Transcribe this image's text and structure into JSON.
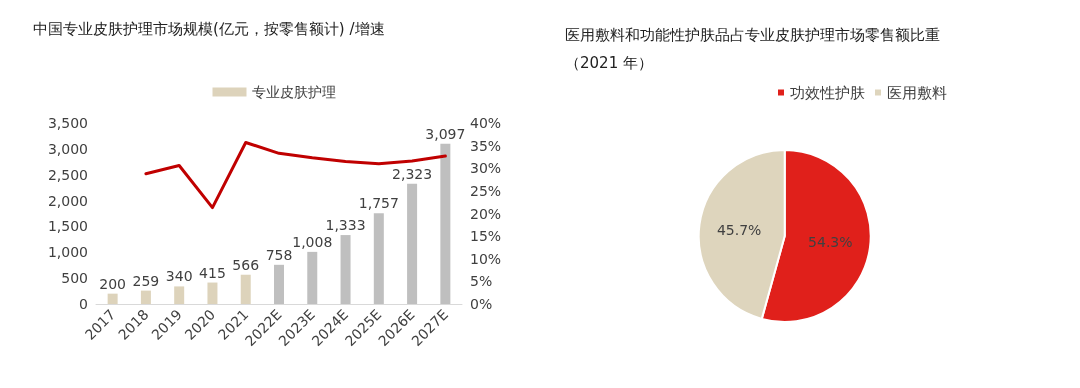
{
  "chart_data": [
    {
      "type": "bar",
      "title": "中国专业皮肤护理市场规模(亿元，按零售额计) /增速",
      "categories": [
        "2017",
        "2018",
        "2019",
        "2020",
        "2021",
        "2022E",
        "2023E",
        "2024E",
        "2025E",
        "2026E",
        "2027E"
      ],
      "series": [
        {
          "name": "专业皮肤护理",
          "color": "#ddd3bb",
          "colors": [
            "#ddd3bb",
            "#ddd3bb",
            "#ddd3bb",
            "#ddd3bb",
            "#ddd3bb",
            "#bfbfbf",
            "#bfbfbf",
            "#bfbfbf",
            "#bfbfbf",
            "#bfbfbf",
            "#bfbfbf"
          ],
          "values": [
            200,
            259,
            340,
            415,
            566,
            758,
            1008,
            1333,
            1757,
            2323,
            3097
          ],
          "value_labels": [
            "200",
            "259",
            "340",
            "415",
            "566",
            "758",
            "1,008",
            "1,333",
            "1,757",
            "2,323",
            "3,097"
          ]
        },
        {
          "type": "line",
          "axis": "y2",
          "color": "#c00000",
          "values": [
            null,
            28.8,
            30.6,
            21.3,
            35.7,
            33.3,
            32.3,
            31.5,
            31.0,
            31.6,
            32.7
          ]
        }
      ],
      "ylim": [
        0,
        3500
      ],
      "yticks": [
        0,
        500,
        {
          "value": 1000,
          "label": "1,000"
        },
        {
          "value": 1500,
          "label": "1,500"
        },
        {
          "value": 2000,
          "label": "2,000"
        },
        {
          "value": 2500,
          "label": "2,500"
        },
        {
          "value": 3000,
          "label": "3,000"
        },
        {
          "value": 3500,
          "label": "3,500"
        }
      ],
      "y2lim": [
        0,
        40
      ],
      "y2ticks": [
        {
          "value": 0,
          "label": "0%"
        },
        {
          "value": 5,
          "label": "5%"
        },
        {
          "value": 10,
          "label": "10%"
        },
        {
          "value": 15,
          "label": "15%"
        },
        {
          "value": 20,
          "label": "20%"
        },
        {
          "value": 25,
          "label": "25%"
        },
        {
          "value": 30,
          "label": "30%"
        },
        {
          "value": 35,
          "label": "35%"
        },
        {
          "value": 40,
          "label": "40%"
        }
      ],
      "legend": "top",
      "grid": false,
      "marker": "none",
      "line_style": "solid"
    },
    {
      "type": "pie",
      "title": "医用敷料和功能性护肤品占专业皮肤护理市场零售额比重（2021 年）",
      "categories": [
        "功效性护肤",
        "医用敷料"
      ],
      "values": [
        54.3,
        45.7
      ],
      "colors": [
        "#e0201b",
        "#ded5bd"
      ],
      "value_labels": [
        "54.3%",
        "45.7%"
      ],
      "legend": "top right"
    }
  ]
}
